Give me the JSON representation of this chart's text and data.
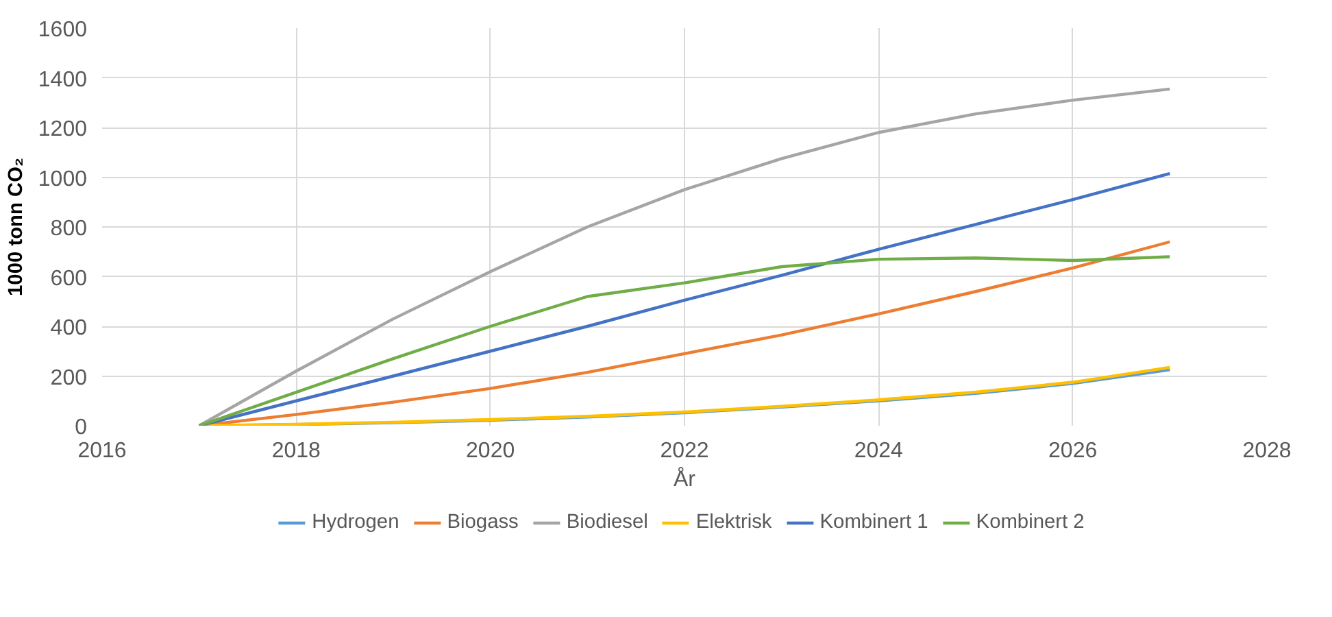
{
  "chart_data": {
    "type": "line",
    "xlabel": "År",
    "ylabel": "1000 tonn CO₂",
    "x": [
      2017,
      2018,
      2019,
      2020,
      2021,
      2022,
      2023,
      2024,
      2025,
      2026,
      2027
    ],
    "xlim": [
      2016,
      2028
    ],
    "xticks": [
      2016,
      2018,
      2020,
      2022,
      2024,
      2026,
      2028
    ],
    "ylim": [
      0,
      1600
    ],
    "yticks": [
      0,
      200,
      400,
      600,
      800,
      1000,
      1200,
      1400,
      1600
    ],
    "grid": true,
    "legend": "bottom",
    "marker": "none",
    "line_style": "solid",
    "series": [
      {
        "name": "Hydrogen",
        "color": "#5b9bd5",
        "values": [
          0,
          5,
          12,
          22,
          35,
          52,
          75,
          100,
          130,
          170,
          225
        ]
      },
      {
        "name": "Biogass",
        "color": "#ed7d31",
        "values": [
          0,
          45,
          95,
          150,
          215,
          290,
          365,
          450,
          540,
          635,
          740
        ]
      },
      {
        "name": "Biodiesel",
        "color": "#a5a5a5",
        "values": [
          0,
          220,
          430,
          620,
          800,
          950,
          1075,
          1180,
          1255,
          1310,
          1355
        ]
      },
      {
        "name": "Elektrisk",
        "color": "#ffc000",
        "values": [
          0,
          6,
          14,
          25,
          38,
          55,
          78,
          104,
          135,
          175,
          235
        ]
      },
      {
        "name": "Kombinert 1",
        "color": "#4472c4",
        "values": [
          0,
          100,
          200,
          300,
          400,
          505,
          605,
          710,
          810,
          910,
          1015
        ]
      },
      {
        "name": "Kombinert 2",
        "color": "#70ad47",
        "values": [
          0,
          135,
          270,
          400,
          520,
          575,
          640,
          670,
          675,
          665,
          680
        ]
      }
    ]
  }
}
